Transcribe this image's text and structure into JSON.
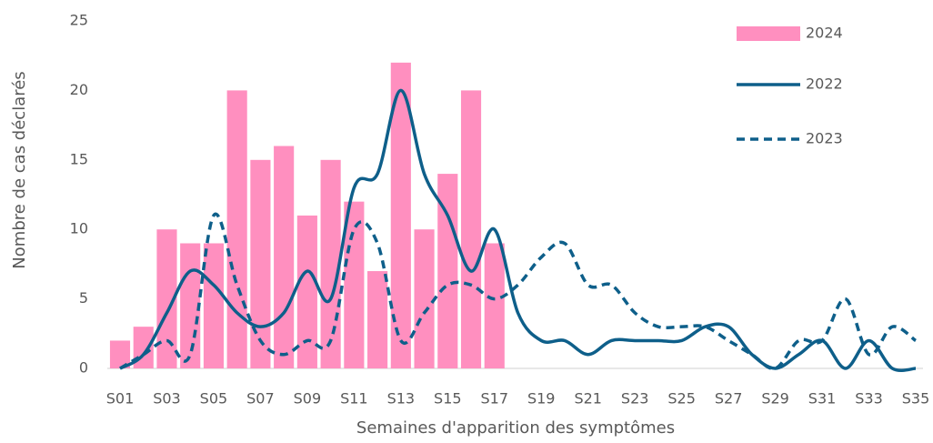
{
  "chart_data": {
    "type": "bar",
    "y_label": "Nombre de cas déclarés",
    "x_label": "Semaines d'apparition des symptômes",
    "categories": [
      "S01",
      null,
      "S03",
      null,
      "S05",
      null,
      "S07",
      null,
      "S09",
      null,
      "S11",
      null,
      "S13",
      null,
      "S15",
      null,
      "S17",
      null,
      "S19",
      null,
      "S21",
      null,
      "S23",
      null,
      "S25",
      null,
      "S27",
      null,
      "S29",
      null,
      "S31",
      null,
      "S33",
      null,
      "S35"
    ],
    "series": [
      {
        "name": "2024",
        "type": "bar",
        "color": "#ff8fbf",
        "values": [
          2,
          3,
          10,
          9,
          9,
          20,
          15,
          16,
          11,
          15,
          12,
          7,
          22,
          10,
          14,
          20,
          9,
          null,
          null,
          null,
          null,
          null,
          null,
          null,
          null,
          null,
          null,
          null,
          null,
          null,
          null,
          null,
          null,
          null,
          null
        ]
      },
      {
        "name": "2022",
        "type": "line",
        "color": "#0e5f8a",
        "dashed": false,
        "values": [
          0,
          1,
          4,
          7,
          6,
          4,
          3,
          4,
          7,
          5,
          13,
          14,
          20,
          14,
          11,
          7,
          10,
          4,
          2,
          2,
          1,
          2,
          2,
          2,
          2,
          3,
          3,
          1,
          0,
          1,
          2,
          0,
          2,
          0,
          0
        ]
      },
      {
        "name": "2023",
        "type": "line",
        "color": "#0e5f8a",
        "dashed": true,
        "values": [
          0,
          1,
          2,
          1,
          11,
          6,
          2,
          1,
          2,
          2,
          10,
          9,
          2,
          4,
          6,
          6,
          5,
          6,
          8,
          9,
          6,
          6,
          4,
          3,
          3,
          3,
          2,
          1,
          0,
          2,
          2,
          5,
          1,
          3,
          2
        ]
      }
    ],
    "ylim": [
      0,
      25
    ],
    "yticks": [
      0,
      5,
      10,
      15,
      20,
      25
    ],
    "grid": false,
    "legend": "top-right"
  }
}
